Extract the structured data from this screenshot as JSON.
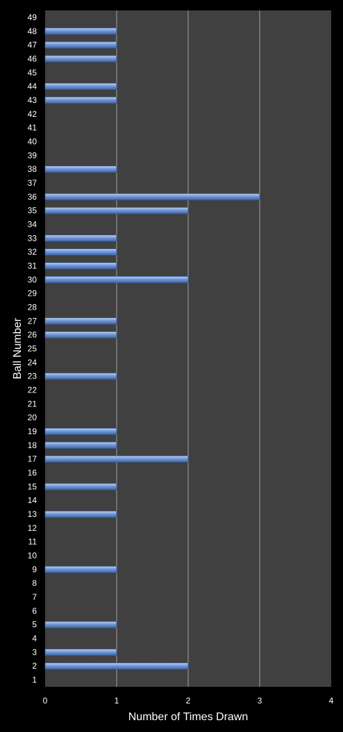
{
  "chart_data": {
    "type": "bar",
    "orientation": "horizontal",
    "title": "",
    "xlabel": "Number of Times Drawn",
    "ylabel": "Ball Number",
    "xlim": [
      0,
      4
    ],
    "x_ticks": [
      0,
      1,
      2,
      3,
      4
    ],
    "grid": true,
    "categories": [
      "1",
      "2",
      "3",
      "4",
      "5",
      "6",
      "7",
      "8",
      "9",
      "10",
      "11",
      "12",
      "13",
      "14",
      "15",
      "16",
      "17",
      "18",
      "19",
      "20",
      "21",
      "22",
      "23",
      "24",
      "25",
      "26",
      "27",
      "28",
      "29",
      "30",
      "31",
      "32",
      "33",
      "34",
      "35",
      "36",
      "37",
      "38",
      "39",
      "40",
      "41",
      "42",
      "43",
      "44",
      "45",
      "46",
      "47",
      "48",
      "49"
    ],
    "values": [
      0,
      2,
      1,
      0,
      1,
      0,
      0,
      0,
      1,
      0,
      0,
      0,
      1,
      0,
      1,
      0,
      2,
      1,
      1,
      0,
      0,
      0,
      1,
      0,
      0,
      1,
      1,
      0,
      0,
      2,
      1,
      1,
      1,
      0,
      2,
      3,
      0,
      1,
      0,
      0,
      0,
      0,
      1,
      1,
      0,
      1,
      1,
      1,
      0
    ],
    "colors": {
      "background": "#000000",
      "plot_area": "#404040",
      "gridline": "#a0a0a0",
      "bar": "#6e93d4",
      "bar_highlight": "#b8cdee",
      "bar_shadow": "#3a5f9f",
      "text": "#ffffff"
    }
  }
}
